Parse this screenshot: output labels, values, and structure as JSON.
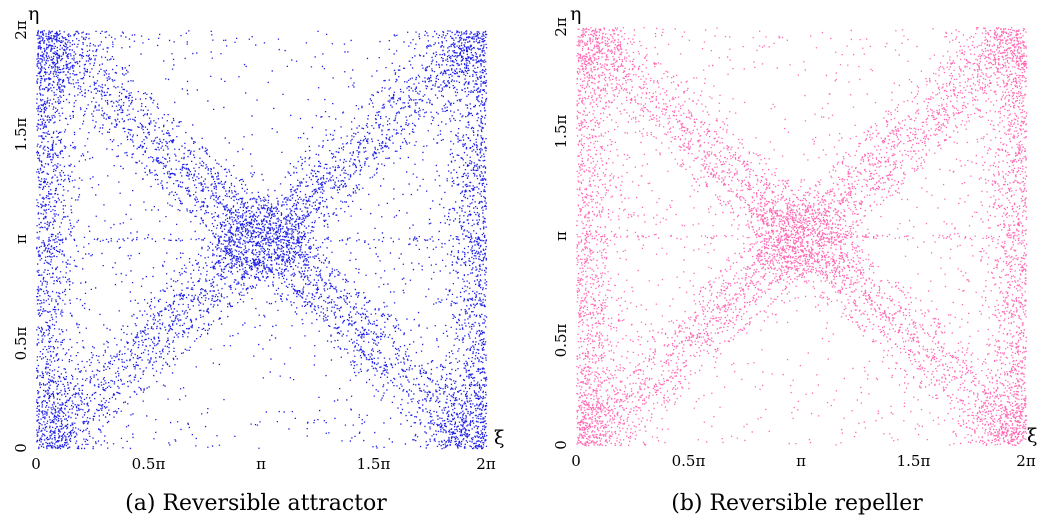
{
  "figure": {
    "colors": {
      "attractor": "#1e1ee6",
      "repeller": "#ff69b4",
      "background": "#ffffff"
    }
  },
  "chart_data": [
    {
      "type": "scatter",
      "caption": "(a) Reversible attractor",
      "xlabel": "ξ",
      "ylabel": "η",
      "xlim": [
        0,
        6.2832
      ],
      "ylim": [
        0,
        6.2832
      ],
      "xticks": [
        "0",
        "0.5π",
        "π",
        "1.5π",
        "2π"
      ],
      "yticks": [
        "0",
        "0.5π",
        "π",
        "1.5π",
        "2π"
      ],
      "color": "#1e1ee6",
      "grid": false,
      "structure": {
        "dense_core": [
          3.1416,
          3.1416
        ],
        "filaments": "X-shaped branches from the corners through the central core",
        "sparse_lobes": "upper and lower bowl-shaped regions",
        "dense_edges": "left and right borders and corners"
      }
    },
    {
      "type": "scatter",
      "caption": "(b) Reversible repeller",
      "xlabel": "ξ",
      "ylabel": "η",
      "xlim": [
        0,
        6.2832
      ],
      "ylim": [
        0,
        6.2832
      ],
      "xticks": [
        "0",
        "0.5π",
        "π",
        "1.5π",
        "2π"
      ],
      "yticks": [
        "0",
        "0.5π",
        "π",
        "1.5π",
        "2π"
      ],
      "color": "#ff69b4",
      "grid": false,
      "structure": {
        "dense_core": [
          3.1416,
          3.1416
        ],
        "filaments": "X-shaped branches from the corners through the central core",
        "sparse_lobes": "upper and lower bowl-shaped regions",
        "dense_edges": "left and right borders and corners"
      }
    }
  ]
}
